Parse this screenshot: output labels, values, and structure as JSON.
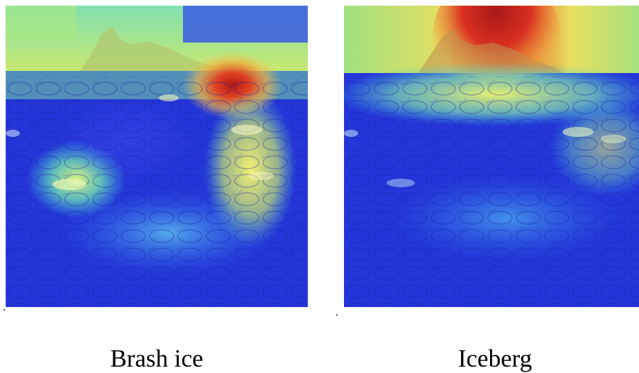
{
  "panels": [
    {
      "caption": "Brash ice"
    },
    {
      "caption": "Iceberg"
    }
  ],
  "colormap": {
    "low": "#1f2fd8",
    "mid_low": "#3ec8e0",
    "mid": "#e8f060",
    "mid_high": "#f09a30",
    "high": "#b01818"
  }
}
